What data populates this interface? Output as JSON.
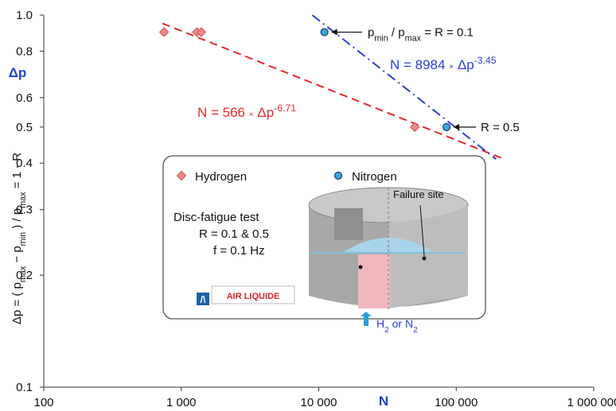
{
  "chart_data": {
    "type": "scatter",
    "xlog": true,
    "ylog": true,
    "grid": false,
    "xlim": [
      100,
      1000000
    ],
    "ylim": [
      0.1,
      1
    ],
    "xticks": [
      100,
      {
        "value": 1000,
        "label": "1 000"
      },
      {
        "value": 10000,
        "label": "10 000"
      },
      {
        "value": 100000,
        "label": "100 000"
      },
      {
        "value": 1000000,
        "label": "1 000 000"
      }
    ],
    "yticks": [
      0.1,
      0.2,
      0.3,
      0.4,
      0.5,
      0.6,
      0.8,
      {
        "value": 1,
        "label": "1.0"
      }
    ],
    "xlabel": "N",
    "ylabel_short": "Δp",
    "ylabel": [
      {
        "t": "Δp = ( p"
      },
      {
        "t": "max",
        "sub": true
      },
      {
        "t": " − p"
      },
      {
        "t": "min",
        "sub": true
      },
      {
        "t": " ) / p"
      },
      {
        "t": "max",
        "sub": true
      },
      {
        "t": " = 1 - R"
      }
    ],
    "series": [
      {
        "name": "Hydrogen",
        "marker": "diamond",
        "color": "#f08a8a",
        "x": [
          750,
          1300,
          1400,
          50000
        ],
        "values": [
          0.9,
          0.9,
          0.9,
          0.5
        ]
      },
      {
        "name": "Nitrogen",
        "marker": "circle",
        "color": "#3aa6dc",
        "x": [
          11000,
          85000
        ],
        "values": [
          0.9,
          0.5
        ]
      }
    ],
    "fits": [
      {
        "color": "#e8272a",
        "dash": "10 6",
        "x": [
          730,
          224000
        ],
        "values": [
          0.95,
          0.41
        ],
        "label": [
          {
            "t": "N = 566 "
          },
          {
            "t": "×",
            "small": true
          },
          {
            "t": " Δp"
          },
          {
            "t": "-6.71",
            "sup": true
          }
        ]
      },
      {
        "color": "#2b3fd0",
        "dash": "12 5 2 5",
        "x": [
          8984,
          195000
        ],
        "values": [
          1,
          0.41
        ],
        "label": [
          {
            "t": "N = 8984 "
          },
          {
            "t": "×",
            "small": true
          },
          {
            "t": " Δp"
          },
          {
            "t": "-3.45",
            "sup": true
          }
        ]
      }
    ],
    "annotations": [
      [
        {
          "t": "p"
        },
        {
          "t": "min",
          "sub": true
        },
        {
          "t": " / p"
        },
        {
          "t": "max",
          "sub": true
        },
        {
          "t": " = R = 0.1"
        }
      ],
      [
        {
          "t": "R = 0.5"
        }
      ]
    ]
  },
  "inset": {
    "test": [
      "Disc-fatigue test",
      "R = 0.1 & 0.5",
      "f = 0.1 Hz"
    ],
    "logo": "AIR LIQUIDE",
    "failure": "Failure site",
    "gas": [
      {
        "t": "H"
      },
      {
        "t": "2",
        "sub": true
      },
      {
        "t": " or N"
      },
      {
        "t": "2",
        "sub": true
      }
    ]
  }
}
